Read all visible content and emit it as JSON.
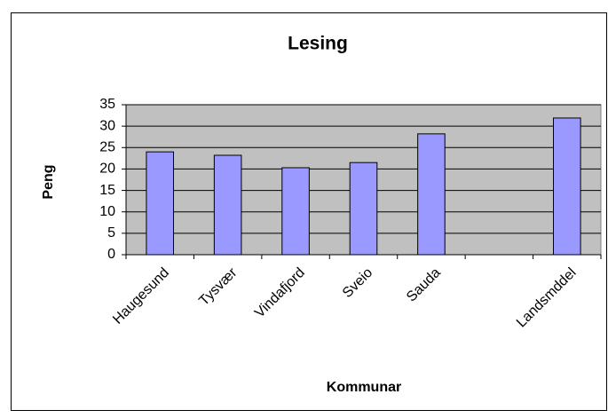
{
  "chart_data": {
    "type": "bar",
    "title": "Lesing",
    "x_label": "Kommunar",
    "y_label": "Peng",
    "categories": [
      "Haugesund",
      "Tysvær",
      "Vindafjord",
      "Sveio",
      "Sauda",
      null,
      "Landsmddel"
    ],
    "values": [
      24,
      23.2,
      20.3,
      21.5,
      28.2,
      null,
      31.9
    ],
    "color": "#9999ff",
    "ylim": [
      0,
      35
    ],
    "yticks": [
      0,
      5,
      10,
      15,
      20,
      25,
      30,
      35
    ],
    "grid": true
  }
}
